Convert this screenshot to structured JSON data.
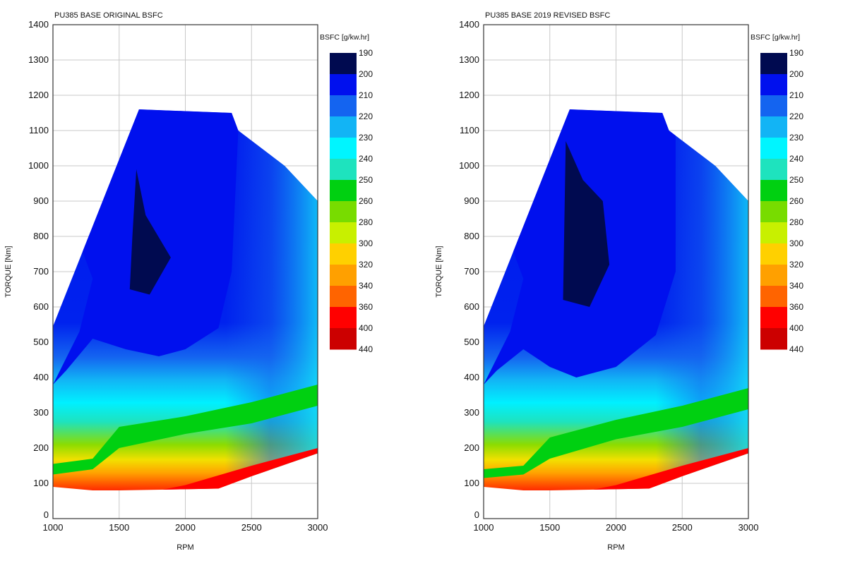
{
  "chart_data": [
    {
      "type": "contour",
      "title": "PU385 BASE ORIGINAL BSFC",
      "xlabel": "RPM",
      "ylabel": "TORQUE [Nm]",
      "xlim": [
        1000,
        3000
      ],
      "ylim": [
        0,
        1400
      ],
      "xticks": [
        "1000",
        "1500",
        "2000",
        "2500",
        "3000"
      ],
      "yticks": [
        "0",
        "100",
        "200",
        "300",
        "400",
        "500",
        "600",
        "700",
        "800",
        "900",
        "1000",
        "1100",
        "1200",
        "1300",
        "1400"
      ],
      "grid": true,
      "colorbar": {
        "title": "BSFC [g/kw.hr]",
        "levels": [
          "190",
          "200",
          "210",
          "220",
          "230",
          "240",
          "250",
          "260",
          "280",
          "300",
          "320",
          "340",
          "360",
          "400",
          "440"
        ],
        "colors": [
          "#000a50",
          "#0010ee",
          "#1464f0",
          "#12b4f5",
          "#00f5ff",
          "#1ee3be",
          "#00d011",
          "#78dc00",
          "#c8f000",
          "#ffd000",
          "#ffa000",
          "#ff6400",
          "#ff0000",
          "#cc0000"
        ]
      },
      "envelope": [
        [
          1000,
          90
        ],
        [
          1300,
          80
        ],
        [
          1500,
          80
        ],
        [
          2250,
          85
        ],
        [
          2500,
          120
        ],
        [
          3000,
          185
        ],
        [
          3000,
          900
        ],
        [
          2750,
          1000
        ],
        [
          2400,
          1100
        ],
        [
          2350,
          1150
        ],
        [
          2000,
          1155
        ],
        [
          1650,
          1160
        ],
        [
          1000,
          545
        ]
      ],
      "regions": [
        {
          "level": "200-210",
          "boundary": [
            [
              1000,
              380
            ],
            [
              1100,
              420
            ],
            [
              1300,
              510
            ],
            [
              1550,
              480
            ],
            [
              1800,
              460
            ],
            [
              2000,
              480
            ],
            [
              2250,
              540
            ],
            [
              2350,
              700
            ],
            [
              2400,
              1100
            ],
            [
              2350,
              1150
            ],
            [
              2000,
              1155
            ],
            [
              1650,
              1160
            ],
            [
              1220,
              760
            ],
            [
              1300,
              680
            ],
            [
              1200,
              530
            ]
          ]
        },
        {
          "level": "190-200",
          "boundary": [
            [
              1630,
              990
            ],
            [
              1700,
              860
            ],
            [
              1890,
              740
            ],
            [
              1730,
              635
            ],
            [
              1580,
              650
            ],
            [
              1600,
              800
            ]
          ]
        },
        {
          "level": "250-260",
          "boundary": [
            [
              1000,
              125
            ],
            [
              1300,
              140
            ],
            [
              1500,
              200
            ],
            [
              2000,
              240
            ],
            [
              2500,
              270
            ],
            [
              3000,
              320
            ],
            [
              3000,
              380
            ],
            [
              2500,
              330
            ],
            [
              2000,
              290
            ],
            [
              1500,
              260
            ],
            [
              1300,
              170
            ],
            [
              1000,
              155
            ]
          ]
        },
        {
          "level": "360-400",
          "boundary": [
            [
              1800,
              80
            ],
            [
              2250,
              85
            ],
            [
              2500,
              120
            ],
            [
              3000,
              185
            ],
            [
              3000,
              200
            ],
            [
              2500,
              150
            ],
            [
              2000,
              95
            ]
          ]
        }
      ]
    },
    {
      "type": "contour",
      "title": "PU385 BASE 2019 REVISED BSFC",
      "xlabel": "RPM",
      "ylabel": "TORQUE [Nm]",
      "xlim": [
        1000,
        3000
      ],
      "ylim": [
        0,
        1400
      ],
      "xticks": [
        "1000",
        "1500",
        "2000",
        "2500",
        "3000"
      ],
      "yticks": [
        "0",
        "100",
        "200",
        "300",
        "400",
        "500",
        "600",
        "700",
        "800",
        "900",
        "1000",
        "1100",
        "1200",
        "1300",
        "1400"
      ],
      "grid": true,
      "colorbar": {
        "title": "BSFC [g/kw.hr]",
        "levels": [
          "190",
          "200",
          "210",
          "220",
          "230",
          "240",
          "250",
          "260",
          "280",
          "300",
          "320",
          "340",
          "360",
          "400",
          "440"
        ],
        "colors": [
          "#000a50",
          "#0010ee",
          "#1464f0",
          "#12b4f5",
          "#00f5ff",
          "#1ee3be",
          "#00d011",
          "#78dc00",
          "#c8f000",
          "#ffd000",
          "#ffa000",
          "#ff6400",
          "#ff0000",
          "#cc0000"
        ]
      },
      "envelope": [
        [
          1000,
          90
        ],
        [
          1300,
          80
        ],
        [
          1500,
          80
        ],
        [
          2250,
          85
        ],
        [
          2500,
          120
        ],
        [
          3000,
          185
        ],
        [
          3000,
          900
        ],
        [
          2750,
          1000
        ],
        [
          2400,
          1100
        ],
        [
          2350,
          1150
        ],
        [
          2000,
          1155
        ],
        [
          1650,
          1160
        ],
        [
          1000,
          545
        ]
      ],
      "regions": [
        {
          "level": "200-210",
          "boundary": [
            [
              1000,
              380
            ],
            [
              1100,
              420
            ],
            [
              1300,
              480
            ],
            [
              1500,
              430
            ],
            [
              1700,
              400
            ],
            [
              2000,
              430
            ],
            [
              2300,
              520
            ],
            [
              2450,
              700
            ],
            [
              2450,
              1100
            ],
            [
              2350,
              1150
            ],
            [
              2000,
              1155
            ],
            [
              1650,
              1160
            ],
            [
              1220,
              760
            ],
            [
              1300,
              680
            ],
            [
              1200,
              530
            ]
          ]
        },
        {
          "level": "190-200",
          "boundary": [
            [
              1620,
              1070
            ],
            [
              1750,
              960
            ],
            [
              1900,
              900
            ],
            [
              1950,
              720
            ],
            [
              1800,
              600
            ],
            [
              1600,
              620
            ]
          ]
        },
        {
          "level": "250-260",
          "boundary": [
            [
              1000,
              115
            ],
            [
              1300,
              125
            ],
            [
              1500,
              170
            ],
            [
              2000,
              225
            ],
            [
              2500,
              260
            ],
            [
              3000,
              310
            ],
            [
              3000,
              370
            ],
            [
              2500,
              320
            ],
            [
              2000,
              280
            ],
            [
              1500,
              230
            ],
            [
              1300,
              150
            ],
            [
              1000,
              140
            ]
          ]
        },
        {
          "level": "360-400",
          "boundary": [
            [
              1800,
              80
            ],
            [
              2250,
              85
            ],
            [
              2500,
              120
            ],
            [
              3000,
              185
            ],
            [
              3000,
              200
            ],
            [
              2500,
              150
            ],
            [
              2000,
              95
            ]
          ]
        }
      ]
    }
  ]
}
